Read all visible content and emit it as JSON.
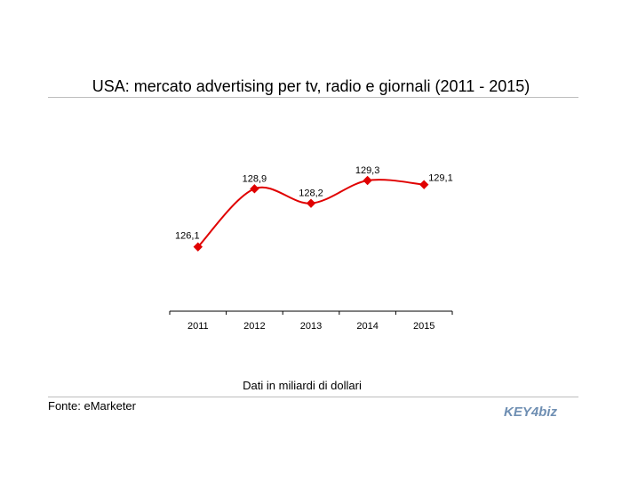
{
  "header": {
    "title": "USA: mercato advertising per tv, radio e giornali (2011 - 2015)"
  },
  "footer": {
    "note": "Dati in miliardi di dollari",
    "source": "Fonte: eMarketer",
    "logo_text": "KEY4biz"
  },
  "colors": {
    "series": "#e00000",
    "axis": "#000000",
    "rule": "#bdbdbd",
    "logo": "#6f8fb3"
  },
  "chart_data": {
    "type": "line",
    "title": "USA: mercato advertising per tv, radio e giornali (2011 - 2015)",
    "xlabel": "",
    "ylabel": "",
    "categories": [
      "2011",
      "2012",
      "2013",
      "2014",
      "2015"
    ],
    "series": [
      {
        "values": [
          126.1,
          128.9,
          128.2,
          129.3,
          129.1
        ],
        "labels": [
          "126,1",
          "128,9",
          "128,2",
          "129,3",
          "129,1"
        ]
      }
    ],
    "ylim": [
      123.0,
      130.5
    ],
    "smooth": true,
    "marker": "diamond",
    "grid": false,
    "legend": "none"
  }
}
